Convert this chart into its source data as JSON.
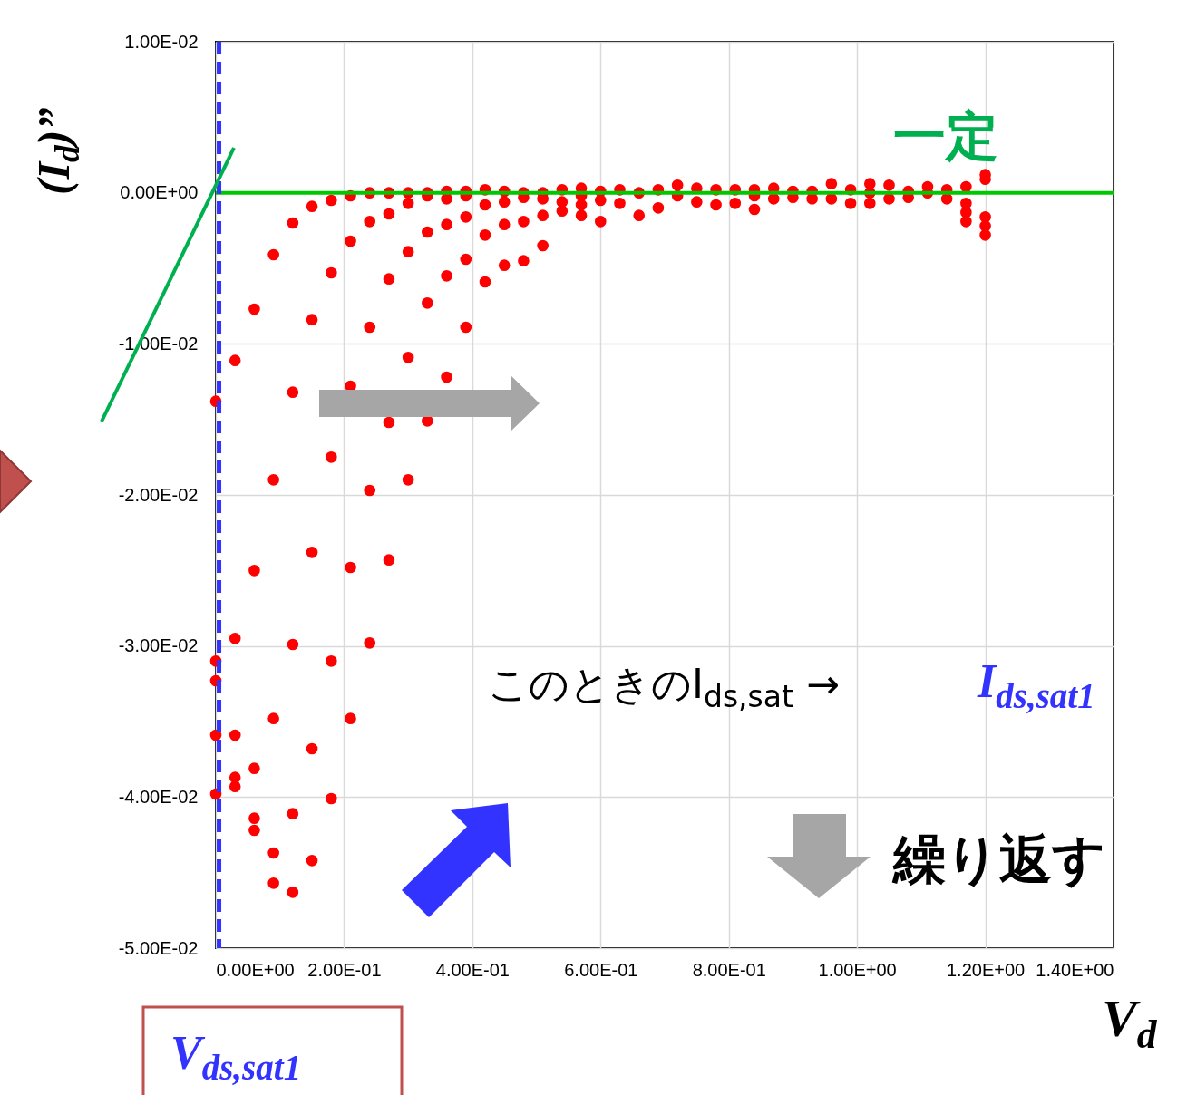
{
  "chart_data": {
    "type": "scatter",
    "xlabel": "V$_{d}$",
    "ylabel": "(I$_{d}$)”",
    "marker": "circle",
    "grid": true,
    "xlim": [
      0,
      1.4
    ],
    "ylim": [
      -0.05,
      0.01
    ],
    "xticks": [
      {
        "value": 0,
        "label": "0.00E+00"
      },
      {
        "value": 0.2,
        "label": "2.00E-01"
      },
      {
        "value": 0.4,
        "label": "4.00E-01"
      },
      {
        "value": 0.6,
        "label": "6.00E-01"
      },
      {
        "value": 0.8,
        "label": "8.00E-01"
      },
      {
        "value": 1,
        "label": "1.00E+00"
      },
      {
        "value": 1.2,
        "label": "1.20E+00"
      },
      {
        "value": 1.4,
        "label": "1.40E+00"
      }
    ],
    "yticks": [
      {
        "value": -0.05,
        "label": "-5.00E-02"
      },
      {
        "value": -0.04,
        "label": "-4.00E-02"
      },
      {
        "value": -0.03,
        "label": "-3.00E-02"
      },
      {
        "value": -0.02,
        "label": "-2.00E-02"
      },
      {
        "value": -0.01,
        "label": "-1.00E-02"
      },
      {
        "value": 0,
        "label": "0.00E+00"
      },
      {
        "value": 0.01,
        "label": "1.00E-02"
      }
    ],
    "ref_lines": [
      {
        "axis": "y",
        "value": 0,
        "label": null,
        "color": "#00c800",
        "line_style": "solid"
      },
      {
        "axis": "x",
        "value": 0.005,
        "label": null,
        "color": "#3333ff",
        "line_style": "dashed"
      }
    ],
    "annotations": [
      "一定",
      "このときのI$_{ds,sat}$ →",
      "I$_{ds,sat1}$",
      "繰り返す",
      "V$_{ds,sat1}$"
    ],
    "series": [
      {
        "color": "#ff0000",
        "x": [
          0,
          0,
          0,
          0,
          0,
          0.03,
          0.03,
          0.03,
          0.03,
          0.03,
          0.06,
          0.06,
          0.06,
          0.06,
          0.06,
          0.09,
          0.09,
          0.09,
          0.09,
          0.09,
          0.12,
          0.12,
          0.12,
          0.12,
          0.12,
          0.15,
          0.15,
          0.15,
          0.15,
          0.15,
          0.18,
          0.18,
          0.18,
          0.18,
          0.18,
          0.21,
          0.21,
          0.21,
          0.21,
          0.21,
          0.24,
          0.24,
          0.24,
          0.24,
          0.24,
          0.27,
          0.27,
          0.27,
          0.27,
          0.27,
          0.3,
          0.3,
          0.3,
          0.3,
          0.3,
          0.33,
          0.33,
          0.33,
          0.33,
          0.33,
          0.36,
          0.36,
          0.36,
          0.36,
          0.36,
          0.39,
          0.39,
          0.39,
          0.39,
          0.39,
          0.42,
          0.42,
          0.42,
          0.42,
          0.45,
          0.45,
          0.45,
          0.45,
          0.48,
          0.48,
          0.48,
          0.48,
          0.51,
          0.51,
          0.51,
          0.51,
          0.54,
          0.54,
          0.54,
          0.57,
          0.57,
          0.57,
          0.57,
          0.6,
          0.6,
          0.6,
          0.63,
          0.63,
          0.66,
          0.66,
          0.69,
          0.69,
          0.72,
          0.72,
          0.75,
          0.75,
          0.78,
          0.78,
          0.81,
          0.81,
          0.84,
          0.84,
          0.84,
          0.87,
          0.87,
          0.9,
          0.9,
          0.93,
          0.93,
          0.96,
          0.96,
          0.99,
          0.99,
          1.02,
          1.02,
          1.02,
          1.05,
          1.05,
          1.08,
          1.08,
          1.11,
          1.11,
          1.14,
          1.14,
          1.17,
          1.17,
          1.17,
          1.17,
          1.2,
          1.2,
          1.2,
          1.2,
          1.2
        ],
        "values": [
          -0.0138,
          -0.031,
          -0.0323,
          -0.0359,
          -0.0398,
          -0.0111,
          -0.0295,
          -0.0359,
          -0.0387,
          -0.0393,
          -0.0077,
          -0.025,
          -0.0381,
          -0.0414,
          -0.0422,
          -0.0041,
          -0.019,
          -0.0348,
          -0.0437,
          -0.0457,
          -0.002,
          -0.0132,
          -0.0299,
          -0.0411,
          -0.0463,
          -0.0009,
          -0.0084,
          -0.0238,
          -0.0368,
          -0.0442,
          -0.0005,
          -0.0053,
          -0.0175,
          -0.031,
          -0.0401,
          -0.0002,
          -0.0032,
          -0.0128,
          -0.0248,
          -0.0348,
          0,
          -0.0019,
          -0.0089,
          -0.0197,
          -0.0298,
          0,
          -0.0014,
          -0.0057,
          -0.0152,
          -0.0243,
          0,
          -0.0007,
          -0.0039,
          -0.0109,
          -0.019,
          0,
          -0.0002,
          -0.0026,
          -0.0073,
          -0.0151,
          0.0001,
          -0.0004,
          -0.0021,
          -0.0055,
          -0.0122,
          0.0001,
          -0.0002,
          -0.0016,
          -0.0044,
          -0.0089,
          0.0002,
          -0.0008,
          -0.0028,
          -0.0059,
          0.0001,
          -0.0006,
          -0.0021,
          -0.0048,
          0,
          -0.0003,
          -0.0019,
          -0.0045,
          0,
          -0.0004,
          -0.0015,
          -0.0035,
          0.0002,
          -0.0006,
          -0.0012,
          0.0003,
          -0.0002,
          -0.0008,
          -0.0015,
          0.0001,
          -0.0005,
          -0.0019,
          0.0002,
          -0.0007,
          0,
          -0.0015,
          0.0002,
          -0.001,
          0.0005,
          -0.0002,
          0.0003,
          -0.0006,
          0.0002,
          -0.0008,
          0.0002,
          -0.0007,
          0.0002,
          -0.0002,
          -0.0011,
          0.0003,
          -0.0004,
          0.0001,
          -0.0003,
          0.0001,
          -0.0004,
          0.0006,
          -0.0004,
          0.0002,
          -0.0007,
          0.0006,
          0,
          -0.0007,
          0.0005,
          -0.0004,
          0.0001,
          -0.0003,
          0.0004,
          0,
          0.0002,
          -0.0004,
          0.0004,
          -0.0007,
          -0.0013,
          -0.0019,
          0.0012,
          0.0009,
          -0.0016,
          -0.0022,
          -0.0028
        ]
      }
    ]
  }
}
